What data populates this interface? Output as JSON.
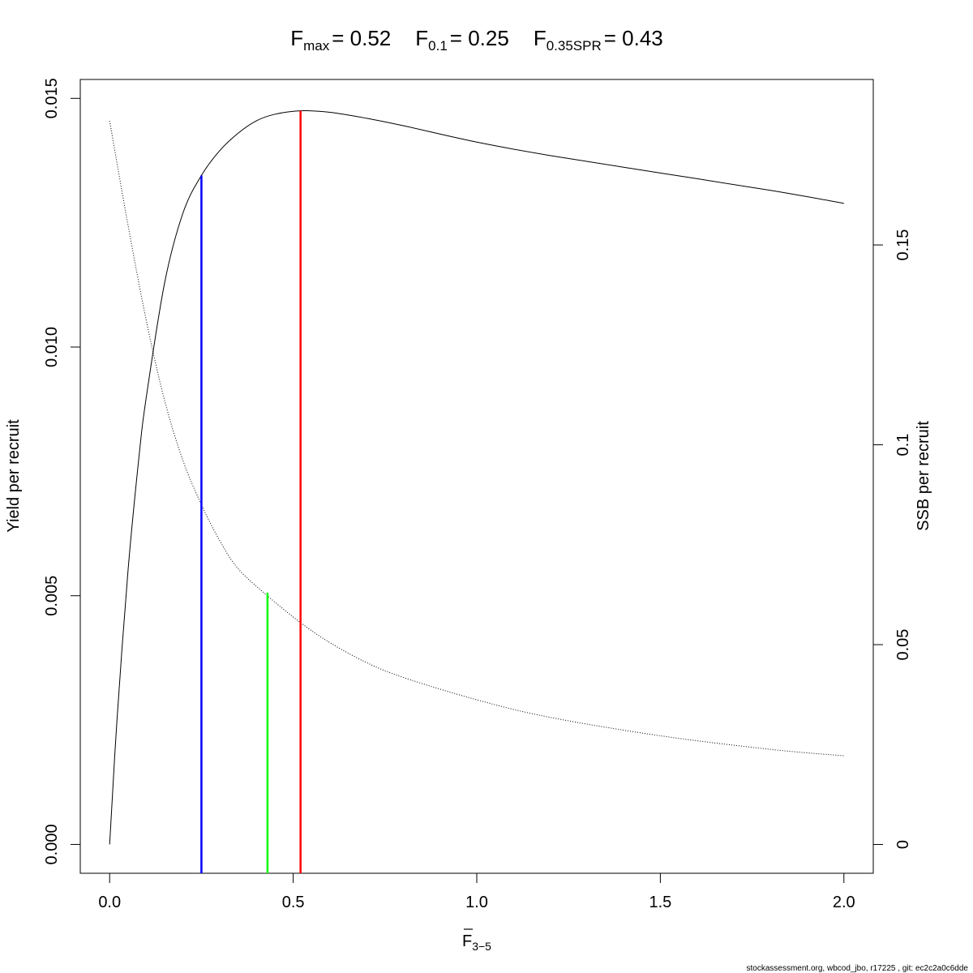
{
  "chart_data": {
    "type": "line",
    "title": {
      "parts": [
        {
          "main": "F",
          "sub": "max",
          "value": "= 0.52"
        },
        {
          "main": "F",
          "sub": "0.1",
          "value": "= 0.25"
        },
        {
          "main": "F",
          "sub": "0.35SPR",
          "value": "= 0.43"
        }
      ]
    },
    "xlabel": {
      "main": "F",
      "sub": "3−5"
    },
    "ylabel_left": "Yield per recruit",
    "ylabel_right": "SSB per recruit",
    "xlim": [
      -0.08,
      2.08
    ],
    "ylim_left": [
      -0.00058,
      0.01538
    ],
    "ylim_right": [
      -0.0072,
      0.1914
    ],
    "x_ticks": [
      0.0,
      0.5,
      1.0,
      1.5,
      2.0
    ],
    "x_tick_labels": [
      "0.0",
      "0.5",
      "1.0",
      "1.5",
      "2.0"
    ],
    "y_left_ticks": [
      0.0,
      0.005,
      0.01,
      0.015
    ],
    "y_left_tick_labels": [
      "0.000",
      "0.005",
      "0.010",
      "0.015"
    ],
    "y_right_ticks": [
      0,
      0.05,
      0.1,
      0.15
    ],
    "y_right_tick_labels": [
      "0",
      "0.05",
      "0.1",
      "0.15"
    ],
    "series": [
      {
        "axis": "left",
        "style": "solid",
        "color": "#000000",
        "x": [
          0.0,
          0.02,
          0.05,
          0.08,
          0.1,
          0.15,
          0.2,
          0.25,
          0.3,
          0.35,
          0.4,
          0.45,
          0.52,
          0.6,
          0.7,
          0.8,
          1.0,
          1.2,
          1.5,
          1.8,
          2.0
        ],
        "y": [
          0.0,
          0.0025,
          0.0055,
          0.0078,
          0.009,
          0.0113,
          0.0127,
          0.01345,
          0.01395,
          0.0143,
          0.01455,
          0.01468,
          0.01475,
          0.01472,
          0.0146,
          0.01445,
          0.01412,
          0.01385,
          0.0135,
          0.01315,
          0.01289
        ]
      },
      {
        "axis": "right",
        "style": "dotted",
        "color": "#000000",
        "x": [
          0.0,
          0.05,
          0.1,
          0.15,
          0.2,
          0.25,
          0.3,
          0.35,
          0.43,
          0.52,
          0.6,
          0.7,
          0.8,
          1.0,
          1.2,
          1.5,
          1.8,
          2.0
        ],
        "y": [
          0.181,
          0.155,
          0.131,
          0.111,
          0.096,
          0.085,
          0.076,
          0.069,
          0.0622,
          0.0555,
          0.0505,
          0.0455,
          0.0418,
          0.0362,
          0.0318,
          0.0272,
          0.0238,
          0.0222
        ]
      }
    ],
    "reference_lines": [
      {
        "name": "Fmax",
        "x": 0.52,
        "y_top": 0.01475,
        "color": "#ff0000"
      },
      {
        "name": "F0.1",
        "x": 0.25,
        "y_top": 0.01345,
        "color": "#0000ff"
      },
      {
        "name": "F0.35SPR",
        "x": 0.43,
        "y_top": 0.00506,
        "color": "#00ff00"
      }
    ],
    "grid": false,
    "legend": "none"
  },
  "footer": "stockassessment.org, wbcod_jbo, r17225 , git: ec2c2a0c6dde"
}
